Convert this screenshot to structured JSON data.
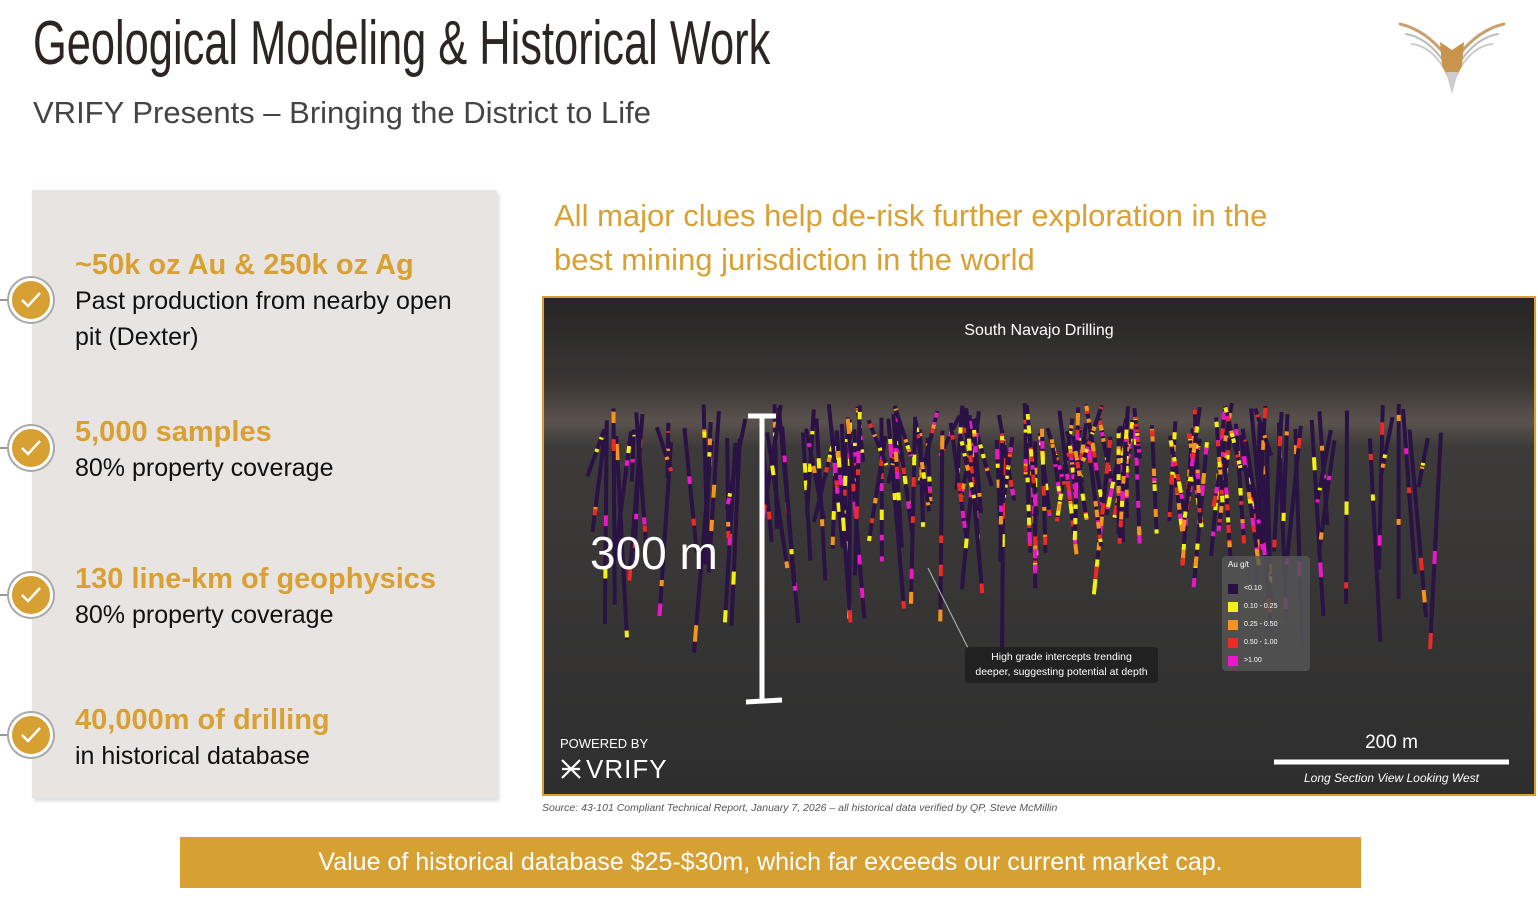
{
  "header": {
    "title": "Geological Modeling & Historical Work",
    "subtitle": "VRIFY Presents – Bringing the District to Life"
  },
  "highlights": [
    {
      "heading": "~50k oz Au & 250k oz Ag",
      "text": "Past production from nearby open pit (Dexter)"
    },
    {
      "heading": "5,000 samples",
      "text": "80% property coverage"
    },
    {
      "heading": "130 line-km of geophysics",
      "text": "80% property coverage"
    },
    {
      "heading": "40,000m of drilling",
      "text": "in historical database"
    }
  ],
  "tagline": "All major clues help de-risk further exploration in the best mining jurisdiction in the world",
  "image": {
    "title": "South Navajo Drilling",
    "vertical_scale": "300 m",
    "horizontal_scale": "200 m",
    "view": "Long Section View Looking West",
    "powered_by": "POWERED BY",
    "brand": "VRIFY",
    "annotation": "High grade intercepts trending deeper, suggesting potential at depth",
    "legend": {
      "title": "Au g/t",
      "items": [
        {
          "label": "<0.10",
          "color": "#2a1245"
        },
        {
          "label": "0.10 - 0.25",
          "color": "#f4f20c"
        },
        {
          "label": "0.25 - 0.50",
          "color": "#f7941d"
        },
        {
          "label": "0.50 - 1.00",
          "color": "#ee2a24"
        },
        {
          "label": ">1.00",
          "color": "#ec17c8"
        }
      ]
    }
  },
  "source": "Source: 43-101 Compliant Technical Report, January 7, 2026 – all historical data verified by QP, Steve McMillin",
  "banner": "Value of historical database $25-$30m, which far exceeds our current market cap."
}
